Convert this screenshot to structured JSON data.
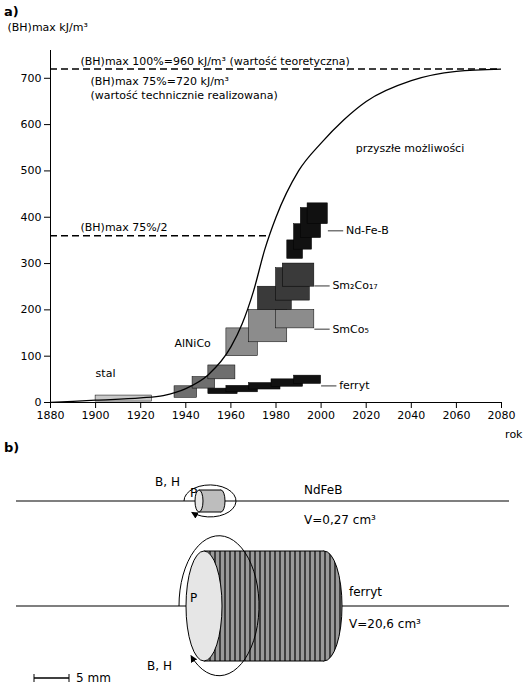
{
  "chart_data": {
    "type": "line",
    "panel_label": "a)",
    "ylabel": "(BH)max kJ/m³",
    "xlabel": "rok",
    "xlim": [
      1880,
      2080
    ],
    "xticks": [
      1880,
      1900,
      1920,
      1940,
      1960,
      1980,
      2000,
      2020,
      2040,
      2060,
      2080
    ],
    "ylim": [
      0,
      760
    ],
    "yticks": [
      0,
      100,
      200,
      300,
      400,
      500,
      600,
      700
    ],
    "grid": false,
    "x": [
      1880,
      1900,
      1920,
      1930,
      1940,
      1950,
      1960,
      1965,
      1970,
      1975,
      1980,
      1990,
      2000,
      2010,
      2020,
      2040,
      2060,
      2080
    ],
    "series": [
      {
        "name": "przyszłe możliwości",
        "color": "#000000",
        "line_style": "solid",
        "values": [
          0,
          5,
          10,
          15,
          30,
          60,
          120,
          170,
          240,
          330,
          400,
          500,
          560,
          610,
          650,
          695,
          715,
          720
        ]
      }
    ],
    "blocks": [
      {
        "name": "stal",
        "color": "#c8c8c8",
        "boxes": [
          {
            "x1": 1900,
            "x2": 1925,
            "y1": 2,
            "y2": 15
          }
        ]
      },
      {
        "name": "AlNiCo",
        "color": "#6e6e6e",
        "boxes": [
          {
            "x1": 1935,
            "x2": 1945,
            "y1": 10,
            "y2": 35
          },
          {
            "x1": 1943,
            "x2": 1953,
            "y1": 30,
            "y2": 55
          },
          {
            "x1": 1950,
            "x2": 1962,
            "y1": 50,
            "y2": 80
          }
        ]
      },
      {
        "name": "ferryt",
        "color": "#111111",
        "boxes": [
          {
            "x1": 1950,
            "x2": 1963,
            "y1": 18,
            "y2": 30
          },
          {
            "x1": 1958,
            "x2": 1972,
            "y1": 22,
            "y2": 36
          },
          {
            "x1": 1968,
            "x2": 1982,
            "y1": 28,
            "y2": 42
          },
          {
            "x1": 1978,
            "x2": 1992,
            "y1": 34,
            "y2": 50
          },
          {
            "x1": 1988,
            "x2": 2000,
            "y1": 40,
            "y2": 58
          }
        ]
      },
      {
        "name": "SmCo₅",
        "color": "#8c8c8c",
        "boxes": [
          {
            "x1": 1958,
            "x2": 1972,
            "y1": 100,
            "y2": 160
          },
          {
            "x1": 1968,
            "x2": 1985,
            "y1": 130,
            "y2": 200
          },
          {
            "x1": 1980,
            "x2": 1997,
            "y1": 160,
            "y2": 200
          }
        ]
      },
      {
        "name": "Sm₂Co₁₇",
        "color": "#3a3a3a",
        "boxes": [
          {
            "x1": 1972,
            "x2": 1987,
            "y1": 200,
            "y2": 250
          },
          {
            "x1": 1980,
            "x2": 1995,
            "y1": 220,
            "y2": 290
          },
          {
            "x1": 1983,
            "x2": 1997,
            "y1": 250,
            "y2": 300
          }
        ]
      },
      {
        "name": "Nd-Fe-B",
        "color": "#111111",
        "boxes": [
          {
            "x1": 1985,
            "x2": 1992,
            "y1": 310,
            "y2": 350
          },
          {
            "x1": 1988,
            "x2": 1996,
            "y1": 330,
            "y2": 385
          },
          {
            "x1": 1991,
            "x2": 2000,
            "y1": 355,
            "y2": 420
          },
          {
            "x1": 1994,
            "x2": 2003,
            "y1": 385,
            "y2": 430
          }
        ]
      }
    ],
    "reference_lines": [
      {
        "value": 720,
        "line_style": "dashed",
        "label_above": "(BH)max 100%=960 kJ/m³ (wartość teoretyczna)",
        "label_below": [
          "(BH)max 75%=720 kJ/m³",
          "(wartość technicznie realizowana)"
        ]
      },
      {
        "value": 360,
        "line_style": "dashed",
        "label_above": "(BH)max 75%/2",
        "label_below": []
      }
    ]
  },
  "diagram": {
    "panel_label": "b)",
    "magnets": [
      {
        "material": "NdFeB",
        "volume": "V=0,27 cm³",
        "field_label": "B, H",
        "point_label": "P"
      },
      {
        "material": "ferryt",
        "volume": "V=20,6 cm³",
        "field_label": "B, H",
        "point_label": "P"
      }
    ],
    "scale_bar": "5 mm"
  }
}
